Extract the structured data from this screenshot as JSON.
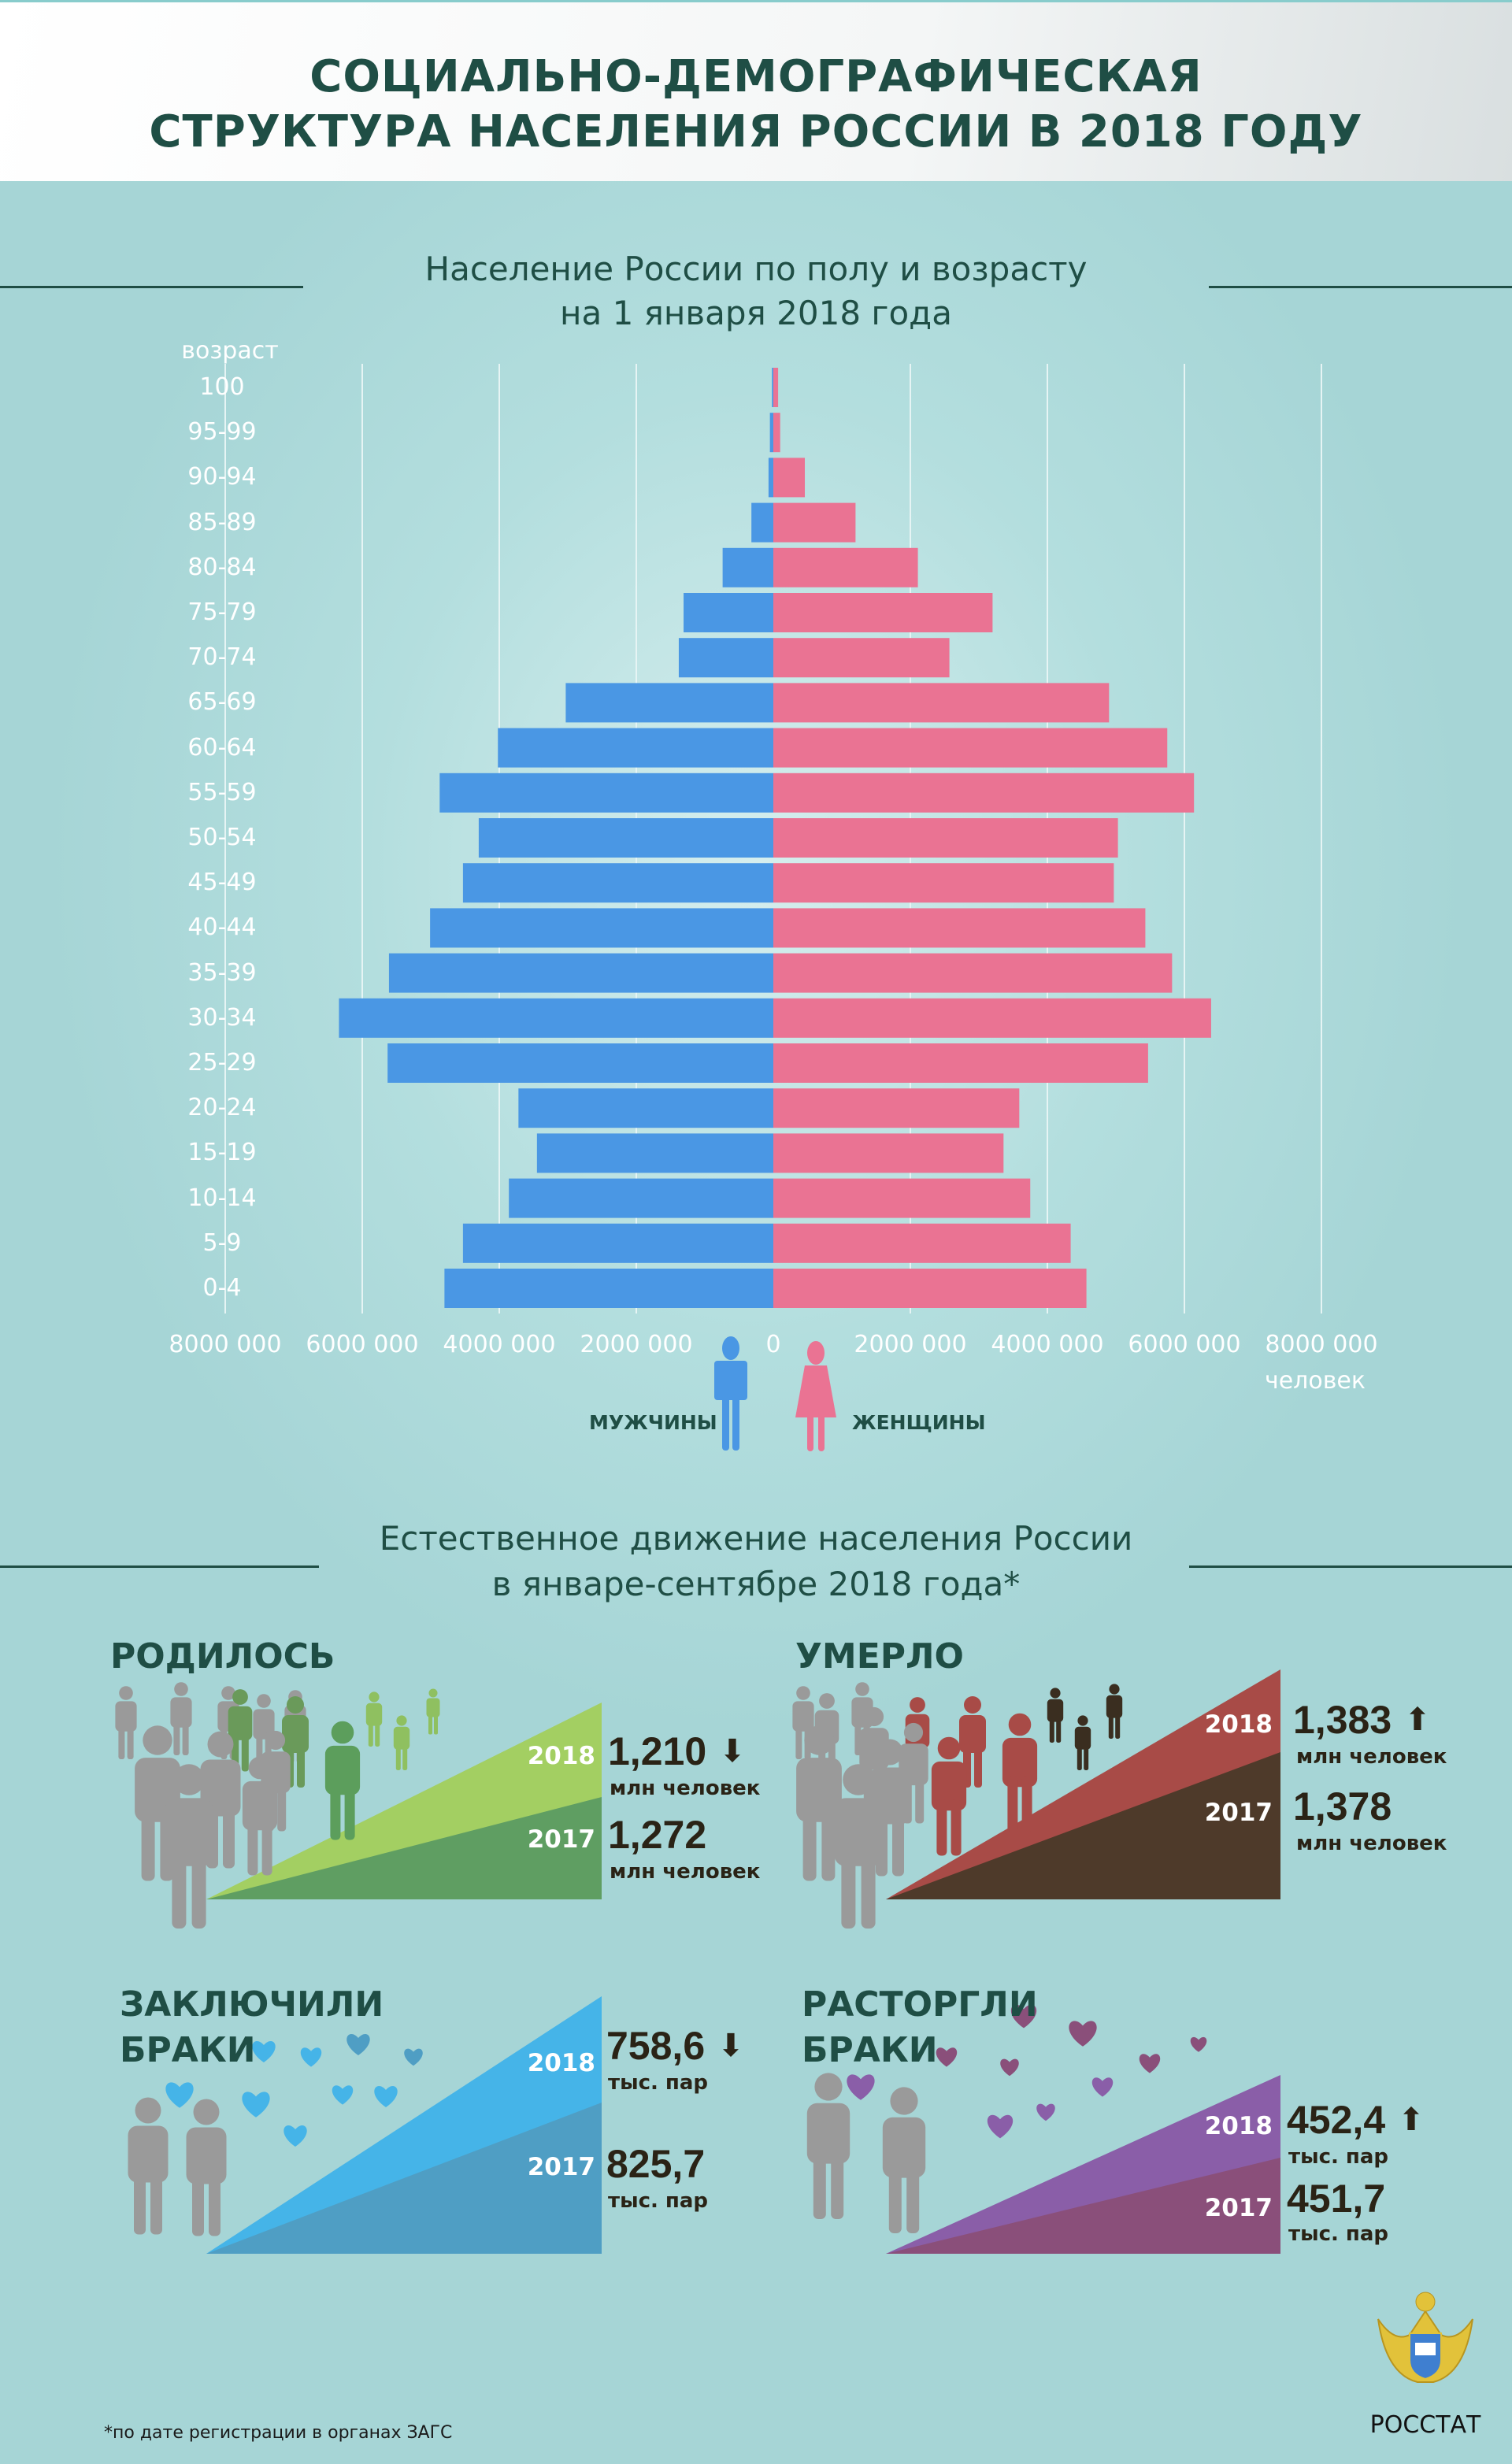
{
  "header": {
    "title_line1": "СОЦИАЛЬНО-ДЕМОГРАФИЧЕСКАЯ",
    "title_line2": "СТРУКТУРА НАСЕЛЕНИЯ РОССИИ В 2018 ГОДУ"
  },
  "section1": {
    "title_line1": "Население России по полу и возрасту",
    "title_line2": "на 1 января 2018 года"
  },
  "chart_data": {
    "type": "bar",
    "orientation": "horizontal",
    "subtype": "population-pyramid",
    "title": "Население России по полу и возрасту на 1 января 2018 года",
    "ylabel": "возраст",
    "xlabel": "человек",
    "categories": [
      "100",
      "95-99",
      "90-94",
      "85-89",
      "80-84",
      "75-79",
      "70-74",
      "65-69",
      "60-64",
      "55-59",
      "50-54",
      "45-49",
      "40-44",
      "35-39",
      "30-34",
      "25-29",
      "20-24",
      "15-19",
      "10-14",
      "5-9",
      "0-4"
    ],
    "series": [
      {
        "name": "мужчины",
        "color": "#4a97e4",
        "values": [
          20000,
          50000,
          70000,
          320000,
          740000,
          1310000,
          1380000,
          3030000,
          4020000,
          4870000,
          4300000,
          4530000,
          5010000,
          5610000,
          6340000,
          5630000,
          3720000,
          3450000,
          3860000,
          4530000,
          4800000
        ]
      },
      {
        "name": "женщины",
        "color": "#ea7393",
        "values": [
          70000,
          100000,
          460000,
          1200000,
          2110000,
          3200000,
          2570000,
          4900000,
          5750000,
          6140000,
          5030000,
          4970000,
          5430000,
          5820000,
          6390000,
          5470000,
          3590000,
          3360000,
          3750000,
          4340000,
          4570000
        ]
      }
    ],
    "xlim": [
      -8000000,
      8000000
    ],
    "xticks": [
      "8000 000",
      "6000 000",
      "4000 000",
      "2000 000",
      "0",
      "2000 000",
      "4000 000",
      "6000 000",
      "8000 000"
    ],
    "grid": true
  },
  "legend": {
    "male": "МУЖЧИНЫ",
    "female": "ЖЕНЩИНЫ"
  },
  "section2": {
    "title_line1": "Естественное движение населения России",
    "title_line2": "в январе-сентябре 2018 года*"
  },
  "births": {
    "title": "РОДИЛОСЬ",
    "y2018": "2018",
    "v2018": "1,210",
    "u2018": "млн человек",
    "trend2018": "down",
    "y2017": "2017",
    "v2017": "1,272",
    "u2017": "млн человек",
    "color_top": "#a3cf62",
    "color_bottom": "#5f9e62"
  },
  "deaths": {
    "title": "УМЕРЛО",
    "y2018": "2018",
    "v2018": "1,383",
    "u2018": "млн человек",
    "trend2018": "up",
    "y2017": "2017",
    "v2017": "1,378",
    "u2017": "млн человек",
    "color_top": "#a84b47",
    "color_bottom": "#4e3a2a"
  },
  "marriages": {
    "title_line1": "ЗАКЛЮЧИЛИ",
    "title_line2": "БРАКИ",
    "y2018": "2018",
    "v2018": "758,6",
    "u2018": "тыс. пар",
    "trend2018": "down",
    "y2017": "2017",
    "v2017": "825,7",
    "u2017": "тыс. пар",
    "color_top": "#45b4e8",
    "color_bottom": "#4f9ec4"
  },
  "divorces": {
    "title_line1": "РАСТОРГЛИ",
    "title_line2": "БРАКИ",
    "y2018": "2018",
    "v2018": "452,4",
    "u2018": "тыс. пар",
    "trend2018": "up",
    "y2017": "2017",
    "v2017": "451,7",
    "u2017": "тыс. пар",
    "color_top": "#8a5ea8",
    "color_bottom": "#8a4f7a"
  },
  "footnote": "*по дате регистрации в органах ЗАГС",
  "logo": {
    "name": "РОССТАТ"
  }
}
